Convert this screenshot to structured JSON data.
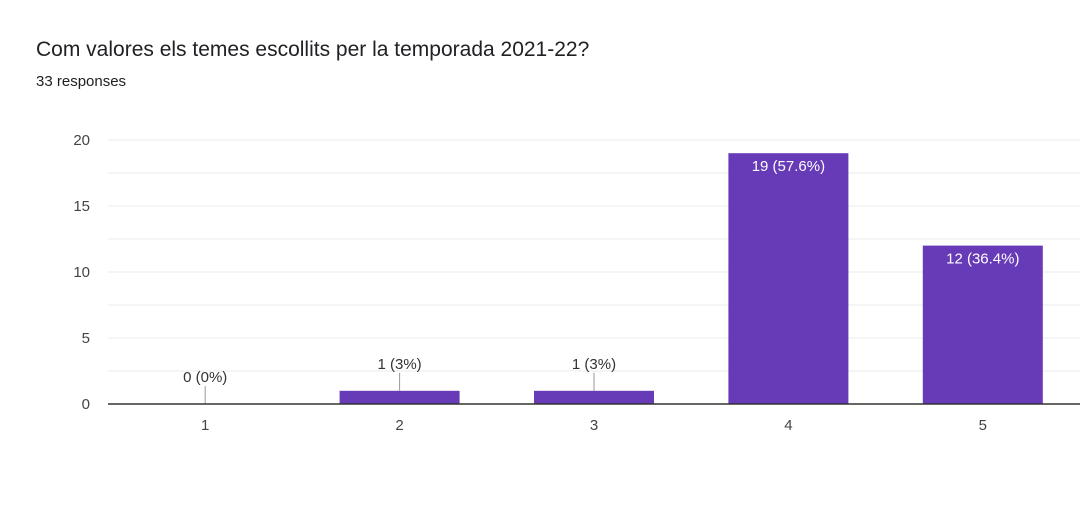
{
  "title": "Com valores els temes escollits per la temporada 2021-22?",
  "subtitle": "33 responses",
  "colors": {
    "bar": "#673ab7",
    "grid": "#ebebeb",
    "axis": "#333333"
  },
  "chart_data": {
    "type": "bar",
    "title": "Com valores els temes escollits per la temporada 2021-22?",
    "xlabel": "",
    "ylabel": "",
    "categories": [
      "1",
      "2",
      "3",
      "4",
      "5"
    ],
    "values": [
      0,
      1,
      1,
      19,
      12
    ],
    "data_labels": [
      "0 (0%)",
      "1 (3%)",
      "1 (3%)",
      "19 (57.6%)",
      "12 (36.4%)"
    ],
    "ylim": [
      0,
      20
    ],
    "yticks": [
      0,
      5,
      10,
      15,
      20
    ],
    "grid": true
  }
}
